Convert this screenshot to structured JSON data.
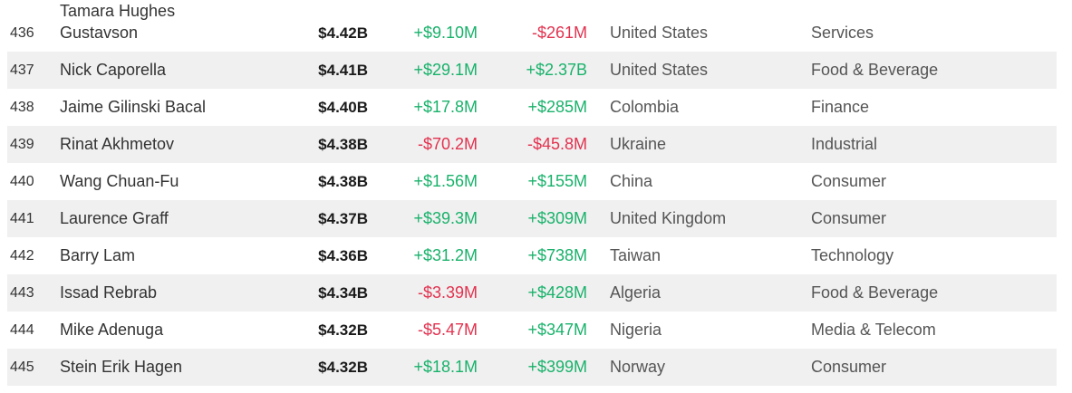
{
  "colors": {
    "positive": "#19b26b",
    "negative": "#e2324f",
    "row_shade": "#f0f0f0"
  },
  "rows": [
    {
      "rank": "436",
      "name_line1": "Tamara Hughes",
      "name": "Gustavson",
      "net_worth": "$4.42B",
      "last_change": "+$9.10M",
      "last_sign": "pos",
      "ytd_change": "-$261M",
      "ytd_sign": "neg",
      "country": "United States",
      "industry": "Services"
    },
    {
      "rank": "437",
      "name": "Nick Caporella",
      "net_worth": "$4.41B",
      "last_change": "+$29.1M",
      "last_sign": "pos",
      "ytd_change": "+$2.37B",
      "ytd_sign": "pos",
      "country": "United States",
      "industry": "Food & Beverage"
    },
    {
      "rank": "438",
      "name": "Jaime Gilinski Bacal",
      "net_worth": "$4.40B",
      "last_change": "+$17.8M",
      "last_sign": "pos",
      "ytd_change": "+$285M",
      "ytd_sign": "pos",
      "country": "Colombia",
      "industry": "Finance"
    },
    {
      "rank": "439",
      "name": "Rinat Akhmetov",
      "net_worth": "$4.38B",
      "last_change": "-$70.2M",
      "last_sign": "neg",
      "ytd_change": "-$45.8M",
      "ytd_sign": "neg",
      "country": "Ukraine",
      "industry": "Industrial"
    },
    {
      "rank": "440",
      "name": "Wang Chuan-Fu",
      "net_worth": "$4.38B",
      "last_change": "+$1.56M",
      "last_sign": "pos",
      "ytd_change": "+$155M",
      "ytd_sign": "pos",
      "country": "China",
      "industry": "Consumer"
    },
    {
      "rank": "441",
      "name": "Laurence Graff",
      "net_worth": "$4.37B",
      "last_change": "+$39.3M",
      "last_sign": "pos",
      "ytd_change": "+$309M",
      "ytd_sign": "pos",
      "country": "United Kingdom",
      "industry": "Consumer"
    },
    {
      "rank": "442",
      "name": "Barry Lam",
      "net_worth": "$4.36B",
      "last_change": "+$31.2M",
      "last_sign": "pos",
      "ytd_change": "+$738M",
      "ytd_sign": "pos",
      "country": "Taiwan",
      "industry": "Technology"
    },
    {
      "rank": "443",
      "name": "Issad Rebrab",
      "net_worth": "$4.34B",
      "last_change": "-$3.39M",
      "last_sign": "neg",
      "ytd_change": "+$428M",
      "ytd_sign": "pos",
      "country": "Algeria",
      "industry": "Food & Beverage"
    },
    {
      "rank": "444",
      "name": "Mike Adenuga",
      "net_worth": "$4.32B",
      "last_change": "-$5.47M",
      "last_sign": "neg",
      "ytd_change": "+$347M",
      "ytd_sign": "pos",
      "country": "Nigeria",
      "industry": "Media & Telecom"
    },
    {
      "rank": "445",
      "name": "Stein Erik Hagen",
      "net_worth": "$4.32B",
      "last_change": "+$18.1M",
      "last_sign": "pos",
      "ytd_change": "+$399M",
      "ytd_sign": "pos",
      "country": "Norway",
      "industry": "Consumer"
    }
  ]
}
